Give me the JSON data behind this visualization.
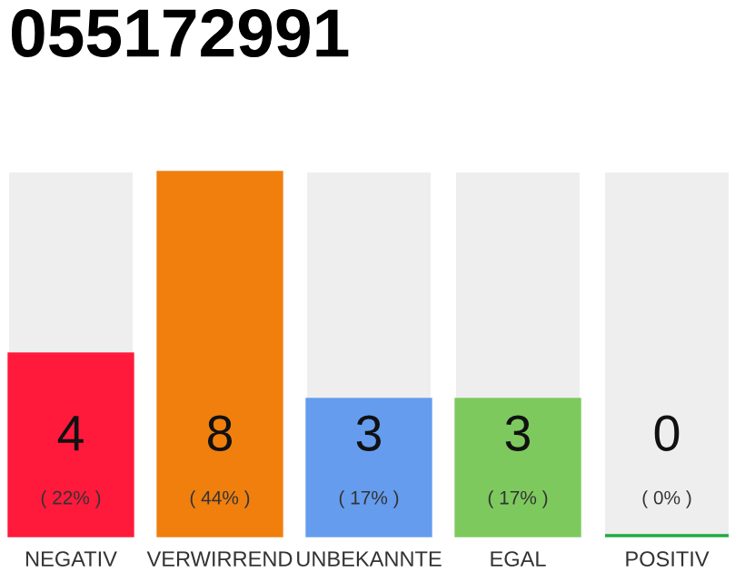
{
  "chart_data": {
    "type": "bar",
    "title": "055172991",
    "categories": [
      "NEGATIV",
      "VERWIRREND",
      "UNBEKANNTE",
      "EGAL",
      "POSITIV"
    ],
    "values": [
      4,
      8,
      3,
      3,
      0
    ],
    "colors": [
      "#ff1a3c",
      "#f07f0e",
      "#659cee",
      "#7dc95e",
      "#22aa44"
    ],
    "data_labels": true,
    "annotations": [
      "( 22% )",
      "( 44% )",
      "( 17% )",
      "( 17% )",
      "( 0% )"
    ],
    "grid": false,
    "legend": false
  }
}
